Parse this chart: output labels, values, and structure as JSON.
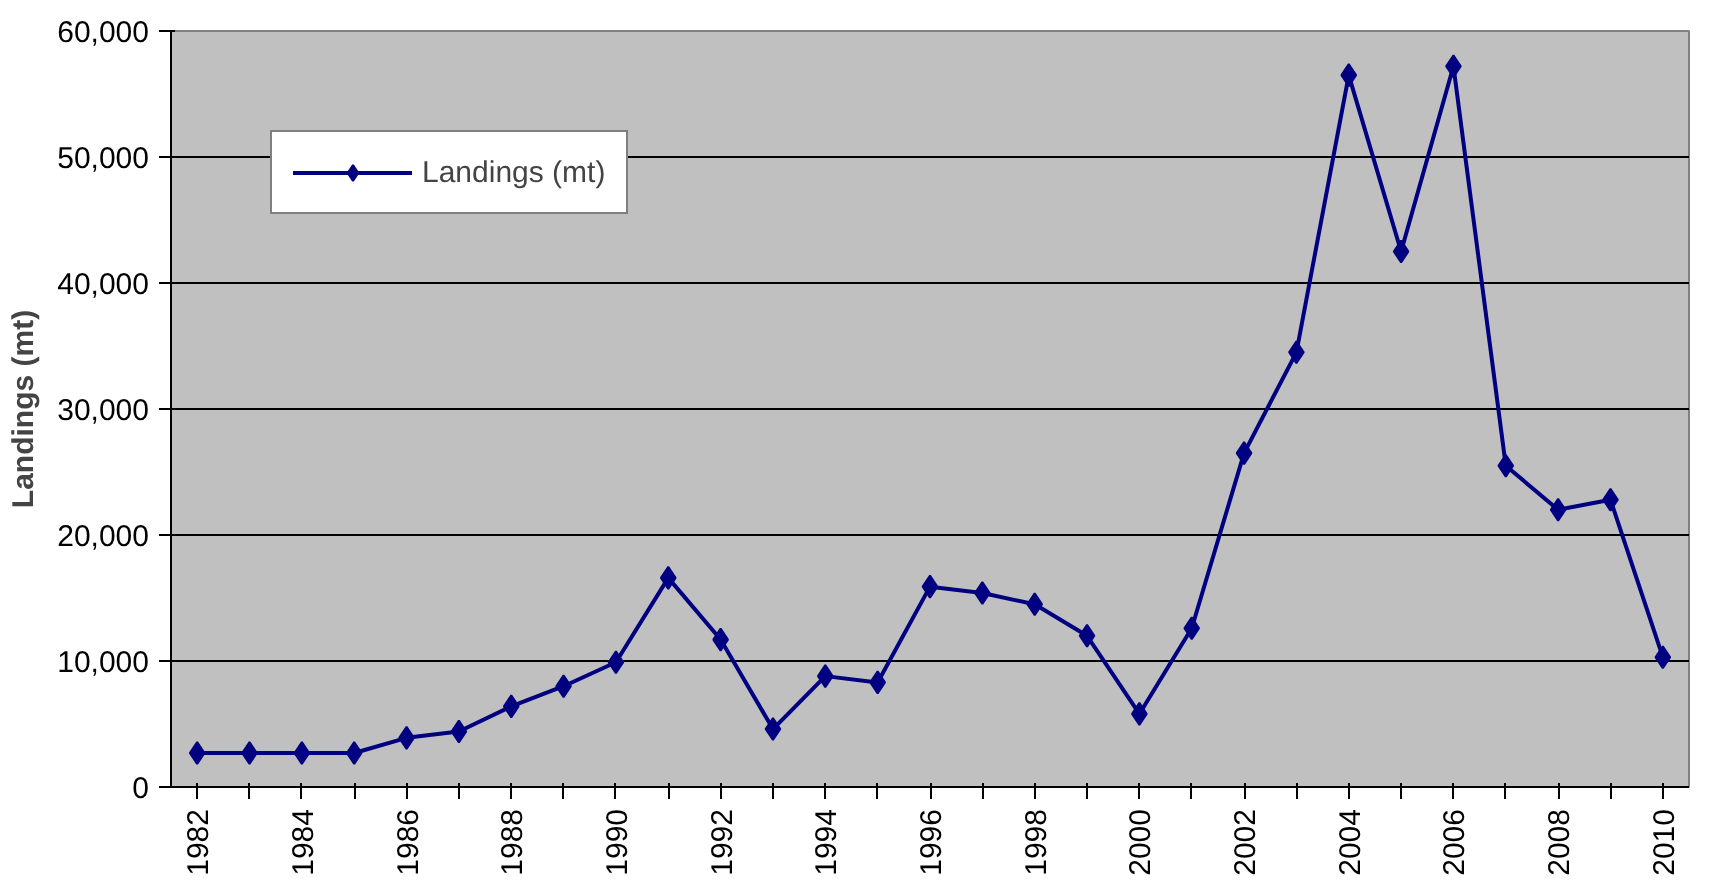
{
  "chart_data": {
    "type": "line",
    "ylabel": "Landings (mt)",
    "categories": [
      "1982",
      null,
      "1984",
      null,
      "1986",
      null,
      "1988",
      null,
      "1990",
      null,
      "1992",
      null,
      "1994",
      null,
      "1996",
      null,
      "1998",
      null,
      "2000",
      null,
      "2002",
      null,
      "2004",
      null,
      "2006",
      null,
      "2008",
      null,
      "2010"
    ],
    "series": [
      {
        "name": "Landings (mt)",
        "color": "#000080",
        "values": [
          2700,
          2700,
          2700,
          2700,
          3900,
          4400,
          6400,
          8000,
          9900,
          16600,
          11700,
          4600,
          8800,
          8300,
          15900,
          15400,
          14500,
          12000,
          5800,
          12600,
          26500,
          34500,
          56500,
          42500,
          57200,
          25500,
          22000,
          22800,
          10300
        ]
      }
    ],
    "ylim": [
      0,
      60000
    ],
    "yticks": [
      {
        "value": 0,
        "label": "0"
      },
      {
        "value": 10000,
        "label": "10,000"
      },
      {
        "value": 20000,
        "label": "20,000"
      },
      {
        "value": 30000,
        "label": "30,000"
      },
      {
        "value": 40000,
        "label": "40,000"
      },
      {
        "value": 50000,
        "label": "50,000"
      },
      {
        "value": 60000,
        "label": "60,000"
      }
    ],
    "grid": "y",
    "legend": "top left",
    "marker": "diamond",
    "line_style": "solid"
  }
}
